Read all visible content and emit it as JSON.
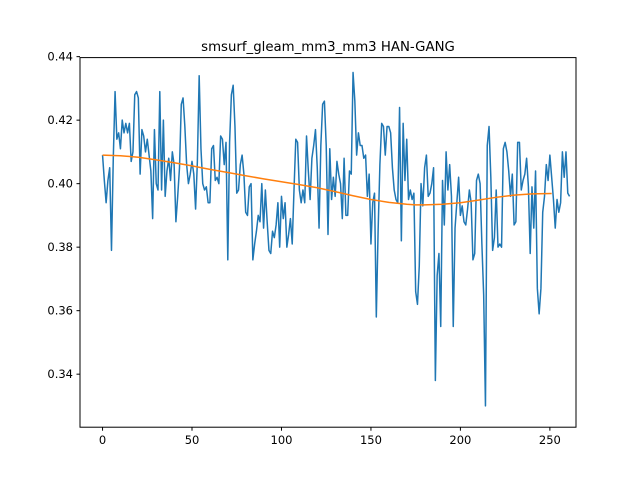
{
  "chart_data": {
    "type": "line",
    "title": "smsurf_gleam_mm3_mm3 HAN-GANG",
    "xlabel": "",
    "ylabel": "",
    "xlim": [
      -12.6,
      264.6
    ],
    "ylim": [
      0.3233,
      0.4397
    ],
    "x_ticks": [
      0,
      50,
      100,
      150,
      200,
      250
    ],
    "x_tick_labels": [
      "0",
      "50",
      "100",
      "150",
      "200",
      "250"
    ],
    "y_ticks": [
      0.34,
      0.36,
      0.38,
      0.4,
      0.42,
      0.44
    ],
    "y_tick_labels": [
      "0.34",
      "0.36",
      "0.38",
      "0.40",
      "0.42",
      "0.44"
    ],
    "grid": false,
    "series": [
      {
        "color": "#1f77b4",
        "x_start": 0,
        "x_step": 1,
        "values": [
          0.409,
          0.401,
          0.394,
          0.401,
          0.405,
          0.379,
          0.408,
          0.429,
          0.414,
          0.416,
          0.411,
          0.42,
          0.416,
          0.419,
          0.416,
          0.419,
          0.407,
          0.41,
          0.428,
          0.429,
          0.427,
          0.403,
          0.417,
          0.415,
          0.41,
          0.414,
          0.409,
          0.404,
          0.389,
          0.417,
          0.4,
          0.398,
          0.429,
          0.398,
          0.42,
          0.396,
          0.404,
          0.408,
          0.401,
          0.41,
          0.406,
          0.388,
          0.396,
          0.405,
          0.425,
          0.427,
          0.418,
          0.406,
          0.4,
          0.403,
          0.407,
          0.403,
          0.392,
          0.407,
          0.434,
          0.411,
          0.4,
          0.398,
          0.399,
          0.394,
          0.394,
          0.411,
          0.412,
          0.401,
          0.402,
          0.4,
          0.415,
          0.414,
          0.406,
          0.413,
          0.376,
          0.413,
          0.428,
          0.431,
          0.418,
          0.397,
          0.398,
          0.406,
          0.409,
          0.403,
          0.391,
          0.39,
          0.399,
          0.4,
          0.376,
          0.381,
          0.385,
          0.39,
          0.388,
          0.4,
          0.386,
          0.398,
          0.388,
          0.379,
          0.378,
          0.385,
          0.383,
          0.387,
          0.394,
          0.38,
          0.396,
          0.389,
          0.394,
          0.38,
          0.384,
          0.389,
          0.381,
          0.398,
          0.414,
          0.413,
          0.398,
          0.394,
          0.398,
          0.394,
          0.415,
          0.404,
          0.395,
          0.408,
          0.412,
          0.417,
          0.405,
          0.386,
          0.412,
          0.425,
          0.426,
          0.412,
          0.384,
          0.411,
          0.395,
          0.402,
          0.396,
          0.407,
          0.403,
          0.4,
          0.389,
          0.408,
          0.39,
          0.39,
          0.404,
          0.403,
          0.435,
          0.426,
          0.409,
          0.416,
          0.412,
          0.412,
          0.408,
          0.409,
          0.396,
          0.403,
          0.381,
          0.394,
          0.397,
          0.358,
          0.385,
          0.406,
          0.419,
          0.418,
          0.409,
          0.418,
          0.418,
          0.416,
          0.405,
          0.398,
          0.395,
          0.394,
          0.424,
          0.382,
          0.419,
          0.401,
          0.414,
          0.395,
          0.398,
          0.395,
          0.397,
          0.366,
          0.362,
          0.374,
          0.4,
          0.393,
          0.405,
          0.409,
          0.396,
          0.397,
          0.4,
          0.405,
          0.338,
          0.371,
          0.378,
          0.355,
          0.401,
          0.387,
          0.41,
          0.398,
          0.406,
          0.396,
          0.355,
          0.386,
          0.394,
          0.402,
          0.39,
          0.393,
          0.388,
          0.387,
          0.392,
          0.398,
          0.394,
          0.376,
          0.378,
          0.401,
          0.403,
          0.4,
          0.381,
          0.365,
          0.33,
          0.412,
          0.418,
          0.402,
          0.379,
          0.383,
          0.398,
          0.38,
          0.381,
          0.38,
          0.411,
          0.413,
          0.41,
          0.404,
          0.396,
          0.403,
          0.387,
          0.388,
          0.413,
          0.413,
          0.398,
          0.401,
          0.403,
          0.408,
          0.399,
          0.378,
          0.399,
          0.386,
          0.404,
          0.367,
          0.359,
          0.367,
          0.391,
          0.396,
          0.406,
          0.401,
          0.409,
          0.402,
          0.395,
          0.386,
          0.395,
          0.391,
          0.394,
          0.41,
          0.402,
          0.41,
          0.397,
          0.396
        ]
      },
      {
        "color": "#ff7f0e",
        "x": [
          0,
          10,
          20,
          30,
          40,
          50,
          60,
          70,
          80,
          90,
          100,
          110,
          120,
          130,
          140,
          150,
          160,
          170,
          175,
          180,
          190,
          200,
          210,
          220,
          230,
          240,
          251
        ],
        "values": [
          0.409,
          0.4088,
          0.4083,
          0.4075,
          0.4066,
          0.4056,
          0.4045,
          0.4035,
          0.4025,
          0.4015,
          0.4006,
          0.3997,
          0.3987,
          0.3975,
          0.3962,
          0.395,
          0.3941,
          0.3935,
          0.3933,
          0.3933,
          0.3935,
          0.394,
          0.3948,
          0.3957,
          0.3964,
          0.3968,
          0.3969
        ]
      }
    ]
  }
}
